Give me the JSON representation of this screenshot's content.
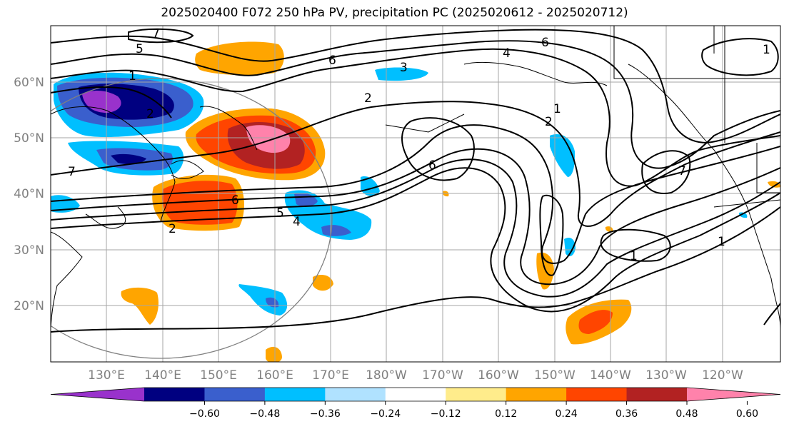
{
  "title": "2025020400 F072 250 hPa PV, precipitation PC (2025020612 - 2025020712)",
  "lat_labels": [
    "60°N",
    "50°N",
    "40°N",
    "30°N",
    "20°N"
  ],
  "lon_labels": [
    "130°E",
    "140°E",
    "150°E",
    "160°E",
    "170°E",
    "180°W",
    "170°W",
    "160°W",
    "150°W",
    "140°W",
    "130°W",
    "120°W"
  ],
  "colorbar": {
    "colors": [
      "#9932cc",
      "#000080",
      "#3a5fcd",
      "#00bfff",
      "#b0e2ff",
      "#ffffff",
      "#ffec8b",
      "#ffa500",
      "#ff4500",
      "#b22222",
      "#ff82ab"
    ],
    "tick_labels": [
      "−0.60",
      "−0.48",
      "−0.36",
      "−0.24",
      "−0.12",
      "0.12",
      "0.24",
      "0.36",
      "0.48",
      "0.60"
    ]
  },
  "contour_labels": [
    "7",
    "5",
    "6",
    "4",
    "6",
    "1",
    "3",
    "2",
    "2",
    "6",
    "1",
    "2",
    "7",
    "6",
    "5",
    "4",
    "2",
    "7",
    "1",
    "1",
    "1"
  ]
}
